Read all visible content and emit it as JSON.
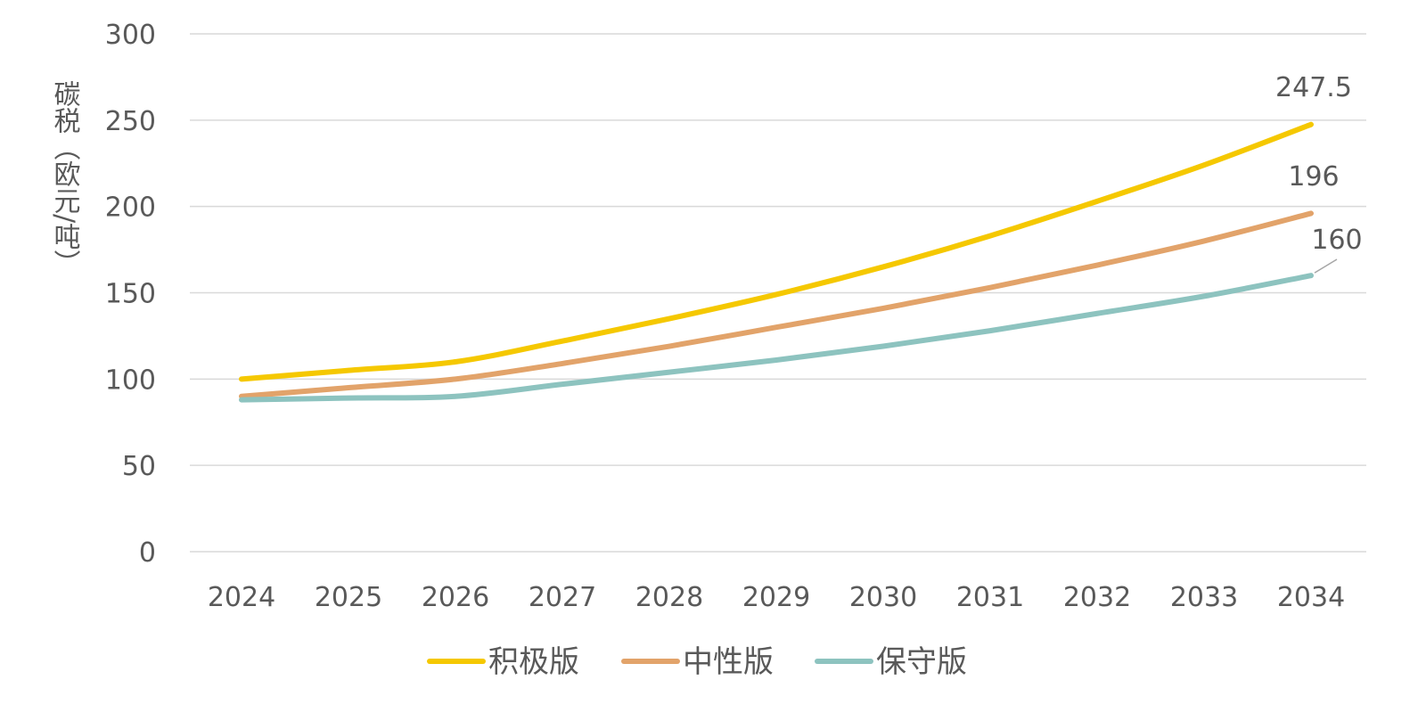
{
  "chart_data": {
    "type": "line",
    "title": "",
    "ylabel": "碳税（欧元/吨）",
    "xlabel": "",
    "categories": [
      "2024",
      "2025",
      "2026",
      "2027",
      "2028",
      "2029",
      "2030",
      "2031",
      "2032",
      "2033",
      "2034"
    ],
    "ylim": [
      0,
      300
    ],
    "yticks": [
      "0",
      "50",
      "100",
      "150",
      "200",
      "250",
      "300"
    ],
    "grid": true,
    "legend_position": "bottom",
    "series": [
      {
        "name": "积极版",
        "color": "#F5C800",
        "values": [
          100,
          105,
          110,
          122,
          135,
          149,
          165,
          183,
          203,
          224,
          247.5
        ],
        "end_label": "247.5"
      },
      {
        "name": "中性版",
        "color": "#E2A36A",
        "values": [
          90,
          95,
          100,
          109,
          119,
          130,
          141,
          153,
          166,
          180,
          196
        ],
        "end_label": "196"
      },
      {
        "name": "保守版",
        "color": "#8DC3BF",
        "values": [
          88,
          89,
          90,
          97,
          104,
          111,
          119,
          128,
          138,
          148,
          160
        ],
        "end_label": "160"
      }
    ]
  }
}
